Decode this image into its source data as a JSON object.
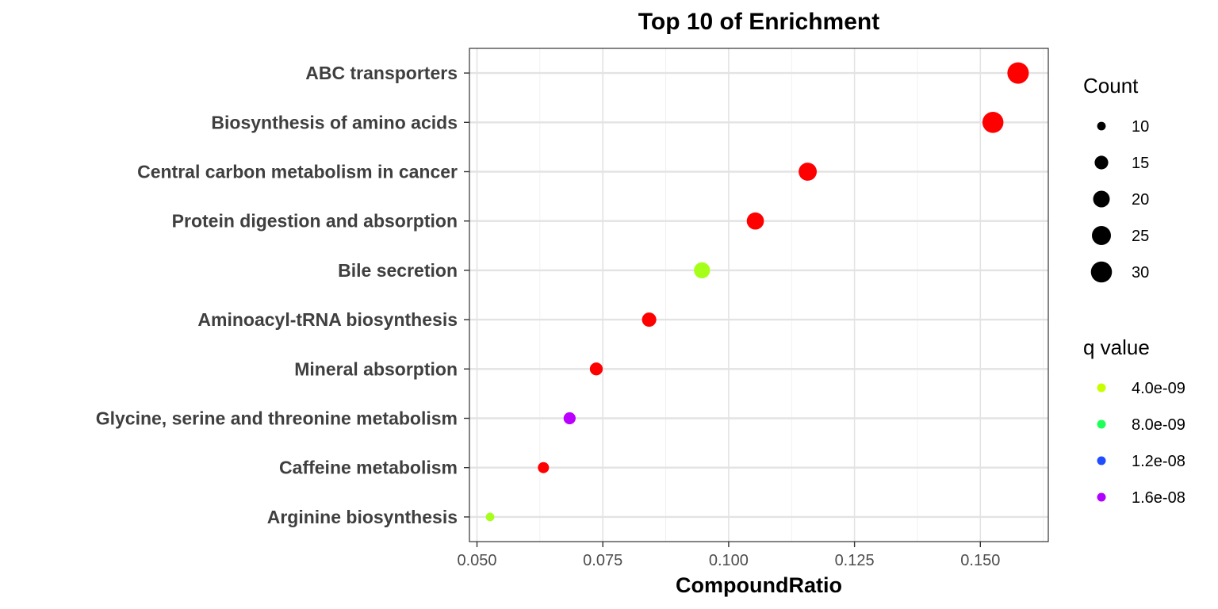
{
  "chart_data": {
    "type": "scatter",
    "title": "Top 10 of Enrichment",
    "xlabel": "CompoundRatio",
    "ylabel": "",
    "xlim": [
      0.0485,
      0.1635
    ],
    "xticks": [
      0.05,
      0.075,
      0.1,
      0.125,
      0.15
    ],
    "xtick_labels": [
      "0.050",
      "0.075",
      "0.100",
      "0.125",
      "0.150"
    ],
    "grid": true,
    "categories": [
      "ABC transporters",
      "Biosynthesis of amino acids",
      "Central carbon metabolism in cancer",
      "Protein digestion and absorption",
      "Bile secretion",
      "Aminoacyl-tRNA biosynthesis",
      "Mineral absorption",
      "Glycine, serine and threonine metabolism",
      "Caffeine metabolism",
      "Arginine biosynthesis"
    ],
    "points": [
      {
        "category": "ABC transporters",
        "x": 0.1575,
        "count": 31,
        "color": "#ff0000"
      },
      {
        "category": "Biosynthesis of amino acids",
        "x": 0.1525,
        "count": 30,
        "color": "#ff0000"
      },
      {
        "category": "Central carbon metabolism in cancer",
        "x": 0.1157,
        "count": 23,
        "color": "#ff0000"
      },
      {
        "category": "Protein digestion and absorption",
        "x": 0.1053,
        "count": 21,
        "color": "#ff0000"
      },
      {
        "category": "Bile secretion",
        "x": 0.0947,
        "count": 19,
        "color": "#a6ff1a"
      },
      {
        "category": "Aminoacyl-tRNA biosynthesis",
        "x": 0.0842,
        "count": 16,
        "color": "#ff0000"
      },
      {
        "category": "Mineral absorption",
        "x": 0.0737,
        "count": 14,
        "color": "#ff0000"
      },
      {
        "category": "Glycine, serine and threonine metabolism",
        "x": 0.0684,
        "count": 13,
        "color": "#bb00ff"
      },
      {
        "category": "Caffeine metabolism",
        "x": 0.0632,
        "count": 12,
        "color": "#ff0000"
      },
      {
        "category": "Arginine biosynthesis",
        "x": 0.0526,
        "count": 10,
        "color": "#a6ff1a"
      }
    ],
    "legend_size": {
      "title": "Count",
      "placement": "right",
      "values": [
        10,
        15,
        20,
        25,
        30
      ],
      "labels": [
        "10",
        "15",
        "20",
        "25",
        "30"
      ]
    },
    "legend_color": {
      "title": "q value",
      "placement": "right",
      "entries": [
        {
          "label": "4.0e-09",
          "color": "#c8ff00"
        },
        {
          "label": "8.0e-09",
          "color": "#1fff5a"
        },
        {
          "label": "1.2e-08",
          "color": "#1f4dff"
        },
        {
          "label": "1.6e-08",
          "color": "#b000ff"
        }
      ]
    }
  }
}
